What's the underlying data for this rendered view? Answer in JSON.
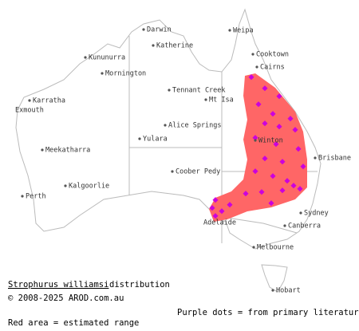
{
  "towns": [
    "Darwin",
    "Weipa",
    "Katherine",
    "Kununurra",
    "Cooktown",
    "Cairns",
    "Mornington",
    "Tennant Creek",
    "Mt Isa",
    "Karratha",
    "Exmouth",
    "Alice Springs",
    "Yulara",
    "Winton",
    "Meekatharra",
    "Coober Pedy",
    "Brisbane",
    "Perth",
    "Kalgoorlie",
    "Sydney",
    "Adelaide",
    "Canberra",
    "Melbourne",
    "Hobart"
  ],
  "caption": {
    "species": "Strophurus williamsi",
    "title": "distribution",
    "copyright": "© 2008-2025 AROD.com.au",
    "legend_dots": "Purple dots = from primary literature",
    "legend_range": "Red area = estimated range"
  }
}
